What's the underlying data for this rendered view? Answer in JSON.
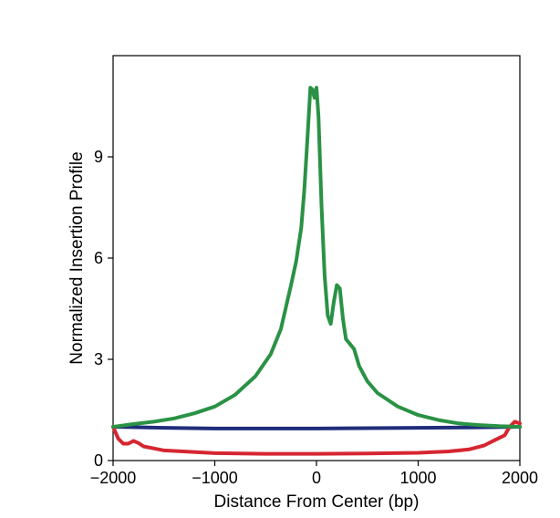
{
  "chart_data": {
    "type": "line",
    "title": "",
    "xlabel": "Distance From Center (bp)",
    "ylabel": "Normalized Insertion Profile",
    "xlim": [
      -2000,
      2000
    ],
    "ylim": [
      0,
      12
    ],
    "xticks": [
      -2000,
      -1000,
      0,
      1000,
      2000
    ],
    "xtick_labels": [
      "−2000",
      "−1000",
      "0",
      "1000",
      "2000"
    ],
    "yticks": [
      0,
      3,
      6,
      9
    ],
    "ytick_labels": [
      "0",
      "3",
      "6",
      "9"
    ],
    "grid": false,
    "legend": "none",
    "series": [
      {
        "color": "#1f2d7a",
        "x": [
          -2000,
          -1500,
          -1000,
          -500,
          0,
          500,
          1000,
          1500,
          2000
        ],
        "y": [
          1.0,
          0.97,
          0.95,
          0.95,
          0.95,
          0.96,
          0.97,
          0.98,
          1.0
        ]
      },
      {
        "color": "#d62631",
        "x": [
          -2000,
          -1950,
          -1900,
          -1850,
          -1800,
          -1750,
          -1700,
          -1600,
          -1500,
          -1000,
          -500,
          0,
          500,
          1000,
          1300,
          1500,
          1650,
          1750,
          1850,
          1900,
          1950,
          2000
        ],
        "y": [
          1.0,
          0.65,
          0.5,
          0.5,
          0.58,
          0.52,
          0.42,
          0.36,
          0.3,
          0.22,
          0.2,
          0.2,
          0.21,
          0.23,
          0.27,
          0.33,
          0.45,
          0.6,
          0.75,
          1.0,
          1.15,
          1.1
        ]
      },
      {
        "color": "#2a9245",
        "x": [
          -2000,
          -1800,
          -1600,
          -1400,
          -1200,
          -1000,
          -800,
          -600,
          -450,
          -350,
          -250,
          -200,
          -150,
          -120,
          -90,
          -60,
          -40,
          -20,
          0,
          20,
          50,
          80,
          110,
          140,
          170,
          200,
          230,
          260,
          290,
          330,
          370,
          420,
          500,
          600,
          800,
          1000,
          1200,
          1400,
          1600,
          1800,
          2000
        ],
        "y": [
          1.0,
          1.08,
          1.15,
          1.25,
          1.4,
          1.6,
          1.95,
          2.5,
          3.15,
          3.9,
          5.2,
          5.9,
          6.9,
          8.0,
          9.5,
          11.05,
          11.0,
          10.75,
          11.05,
          10.2,
          7.5,
          5.5,
          4.3,
          4.05,
          4.7,
          5.2,
          5.1,
          4.2,
          3.6,
          3.45,
          3.3,
          2.8,
          2.35,
          2.0,
          1.6,
          1.35,
          1.2,
          1.1,
          1.05,
          1.02,
          1.0
        ]
      }
    ]
  }
}
